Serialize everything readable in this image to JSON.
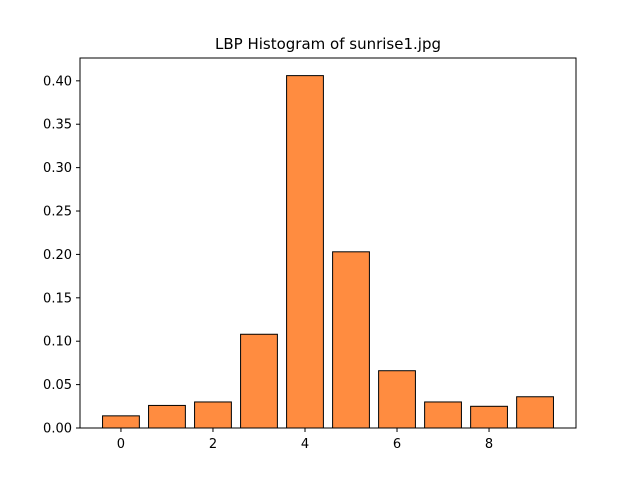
{
  "chart_data": {
    "type": "bar",
    "title": "LBP Histogram of sunrise1.jpg",
    "xlabel": "",
    "ylabel": "",
    "categories": [
      0,
      1,
      2,
      3,
      4,
      5,
      6,
      7,
      8,
      9
    ],
    "values": [
      0.014,
      0.026,
      0.03,
      0.108,
      0.406,
      0.203,
      0.066,
      0.03,
      0.025,
      0.036
    ],
    "xlim": [
      -0.89,
      9.89
    ],
    "ylim": [
      0,
      0.4263
    ],
    "xticks": [
      0,
      2,
      4,
      6,
      8
    ],
    "xtick_labels": [
      "0",
      "2",
      "4",
      "6",
      "8"
    ],
    "yticks": [
      0.0,
      0.05,
      0.1,
      0.15,
      0.2,
      0.25,
      0.3,
      0.35,
      0.4
    ],
    "ytick_labels": [
      "0.00",
      "0.05",
      "0.10",
      "0.15",
      "0.20",
      "0.25",
      "0.30",
      "0.35",
      "0.40"
    ],
    "bar_color": "#ff8c40",
    "edge_color": "#000000",
    "grid": false,
    "legend": "none"
  }
}
